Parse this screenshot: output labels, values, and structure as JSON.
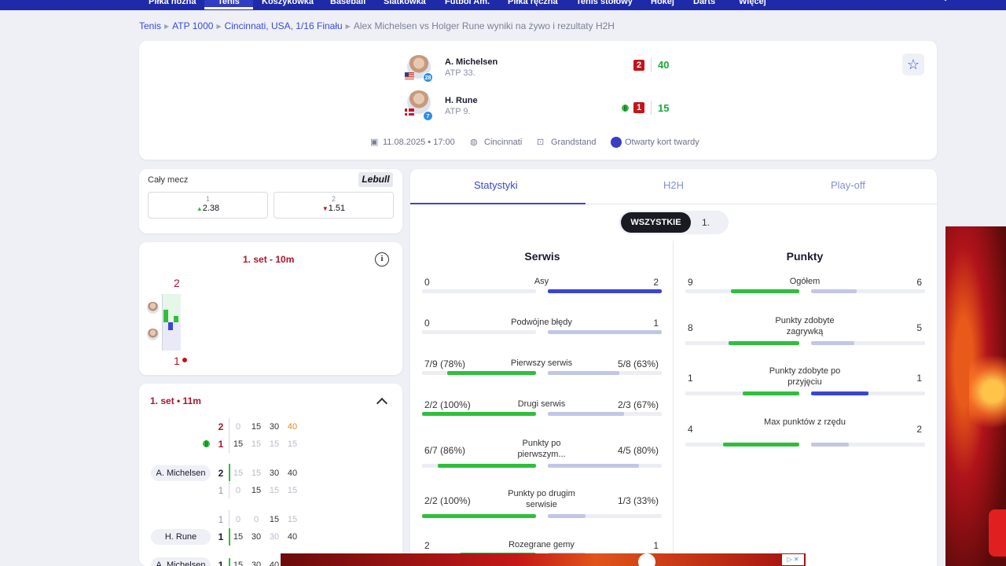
{
  "nav": {
    "items": [
      "Piłka nożna",
      "Tenis",
      "Koszykówka",
      "Baseball",
      "Siatkówka",
      "Futbol Am.",
      "Piłka ręczna",
      "Tenis stołowy",
      "Hokej",
      "Darts",
      "Więcej"
    ]
  },
  "breadcrumb": {
    "items": [
      "Tenis",
      "ATP 1000",
      "Cincinnati, USA, 1/16 Finału"
    ],
    "current": "Alex Michelsen vs Holger Rune wyniki na żywo i rezultaty H2H"
  },
  "match": {
    "player1": {
      "name": "A. Michelsen",
      "rank": "ATP 33.",
      "seed": "28",
      "sets": "2",
      "game": "40"
    },
    "player2": {
      "name": "H. Rune",
      "rank": "ATP 9.",
      "seed": "7",
      "sets": "1",
      "game": "15"
    },
    "datetime": "11.08.2025 • 17:00",
    "location": "Cincinnati",
    "court": "Grandstand",
    "surface": "Otwarty kort twardy"
  },
  "odds": {
    "title": "Cały mecz",
    "bookmaker": "Lebull",
    "options": [
      {
        "label": "1",
        "value": "2.38",
        "trend": "up"
      },
      {
        "label": "2",
        "value": "1.51",
        "trend": "down"
      }
    ]
  },
  "momentum": {
    "title": "1. set - 10m",
    "top_value": "2",
    "bottom_value": "1"
  },
  "pbp": {
    "title": "1. set • 11m",
    "summary_rows": [
      {
        "score": "2",
        "points": [
          "0",
          "15",
          "30",
          "40"
        ]
      },
      {
        "score": "1",
        "points": [
          "15",
          "15",
          "15",
          "15"
        ]
      }
    ],
    "games": [
      {
        "rows": [
          {
            "player": "A. Michelsen",
            "score": "2",
            "points": [
              "15",
              "15",
              "30",
              "40"
            ]
          },
          {
            "player": "",
            "score": "1",
            "points": [
              "0",
              "15",
              "15",
              "15"
            ]
          }
        ]
      },
      {
        "rows": [
          {
            "player": "",
            "score": "1",
            "points": [
              "0",
              "0",
              "15",
              "15"
            ]
          },
          {
            "player": "H. Rune",
            "score": "1",
            "points": [
              "15",
              "30",
              "30",
              "40"
            ]
          }
        ]
      },
      {
        "rows": [
          {
            "player": "A. Michelsen",
            "score": "1",
            "points": [
              "15",
              "30",
              "40"
            ]
          }
        ]
      }
    ]
  },
  "stats": {
    "tabs": [
      "Statystyki",
      "H2H",
      "Play-off"
    ],
    "periods": [
      "WSZYSTKIE",
      "1."
    ],
    "serve": {
      "title": "Serwis",
      "rows": [
        {
          "label": "Asy",
          "left": "0",
          "right": "2",
          "left_frac": 0.0,
          "right_frac": 1.0,
          "right_color": "blue"
        },
        {
          "label": "Podwójne błędy",
          "left": "0",
          "right": "1",
          "left_frac": 0.0,
          "right_frac": 1.0,
          "right_color": "lav"
        },
        {
          "label": "Pierwszy serwis",
          "left": "7/9 (78%)",
          "right": "5/8 (63%)",
          "left_frac": 0.78,
          "right_frac": 0.63,
          "right_color": "lav"
        },
        {
          "label": "Drugi serwis",
          "left": "2/2 (100%)",
          "right": "2/3 (67%)",
          "left_frac": 1.0,
          "right_frac": 0.67,
          "right_color": "lav"
        },
        {
          "label": "Punkty po pierwszym...",
          "left": "6/7 (86%)",
          "right": "4/5 (80%)",
          "left_frac": 0.86,
          "right_frac": 0.8,
          "right_color": "lav"
        },
        {
          "label": "Punkty po drugim serwisie",
          "left": "2/2 (100%)",
          "right": "1/3 (33%)",
          "left_frac": 1.0,
          "right_frac": 0.33,
          "right_color": "lav"
        },
        {
          "label": "Rozegrane gemy",
          "left": "2",
          "right": "1",
          "left_frac": 0.67,
          "right_frac": 0.33,
          "right_color": "lav"
        }
      ]
    },
    "points": {
      "title": "Punkty",
      "rows": [
        {
          "label": "Ogółem",
          "left": "9",
          "right": "6",
          "left_frac": 0.6,
          "right_frac": 0.4,
          "right_color": "lav"
        },
        {
          "label": "Punkty zdobyte zagrywką",
          "left": "8",
          "right": "5",
          "left_frac": 0.62,
          "right_frac": 0.38,
          "right_color": "lav"
        },
        {
          "label": "Punkty zdobyte po przyjęciu",
          "left": "1",
          "right": "1",
          "left_frac": 0.5,
          "right_frac": 0.5,
          "right_color": "blue"
        },
        {
          "label": "Max punktów z rzędu",
          "left": "4",
          "right": "2",
          "left_frac": 0.67,
          "right_frac": 0.33,
          "right_color": "lav"
        }
      ]
    }
  },
  "colors": {
    "brand": "#1e2aa8",
    "accent": "#3a46d0",
    "green": "#2fbf3d",
    "red": "#c3141b"
  }
}
